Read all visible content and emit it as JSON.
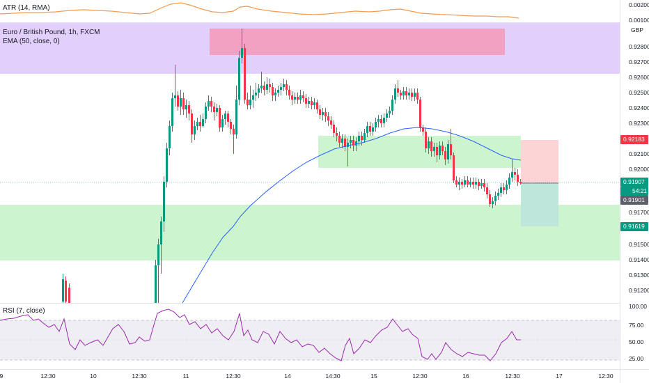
{
  "atr": {
    "title": "ATR (14, RMA)",
    "ticks": [
      "0.00200",
      "0.00100"
    ],
    "color": "#f59a4f"
  },
  "main": {
    "symbol": "Euro / British Pound, 1h, FXCM",
    "ema_label": "EMA (50, close, 0)",
    "currency": "GBP",
    "ticks": [
      "0.92800",
      "0.92700",
      "0.92600",
      "0.92500",
      "0.92400",
      "0.92300",
      "0.92100",
      "0.92000",
      "0.91700",
      "0.91500",
      "0.91400",
      "0.91300",
      "0.91200"
    ],
    "tags": {
      "stop": "0.92183",
      "last": "0.91907",
      "countdown": "54:21",
      "entry": "0.91901",
      "target": "0.91619"
    },
    "colors": {
      "up": "#089981",
      "down": "#f23645",
      "ema": "#2962ff",
      "zone_purple": "#e1c8ff",
      "zone_green": "#c8f5c8",
      "zone_pink": "#f28fb0"
    }
  },
  "rsi": {
    "title": "RSI (7, close)",
    "ticks": [
      "100.00",
      "75.00",
      "50.00",
      "25.00"
    ],
    "color": "#9c27b0"
  },
  "xaxis": {
    "labels": [
      "9",
      "12:30",
      "10",
      "12:30",
      "11",
      "12:30",
      "14",
      "14:30",
      "15",
      "12:30",
      "16",
      "12:30",
      "17",
      "12:30"
    ]
  }
}
